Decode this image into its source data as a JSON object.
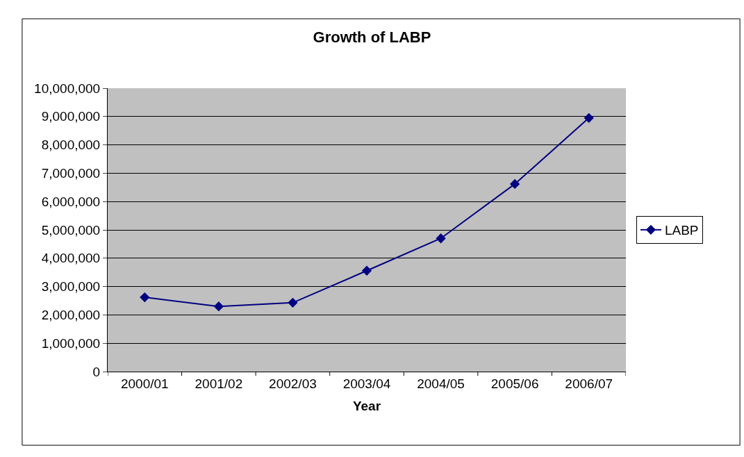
{
  "chart_data": {
    "type": "line",
    "title": "Growth of LABP",
    "xlabel": "Year",
    "categories": [
      "2000/01",
      "2001/02",
      "2002/03",
      "2003/04",
      "2004/05",
      "2005/06",
      "2006/07"
    ],
    "series": [
      {
        "name": "LABP",
        "color": "#000080",
        "values": [
          2620000,
          2300000,
          2430000,
          3560000,
          4700000,
          6620000,
          8950000
        ]
      }
    ],
    "ylim": [
      0,
      10000000
    ],
    "yticks": [
      {
        "value": 0,
        "label": "0"
      },
      {
        "value": 1000000,
        "label": "1,000,000"
      },
      {
        "value": 2000000,
        "label": "2,000,000"
      },
      {
        "value": 3000000,
        "label": "3,000,000"
      },
      {
        "value": 4000000,
        "label": "4,000,000"
      },
      {
        "value": 5000000,
        "label": "5,000,000"
      },
      {
        "value": 6000000,
        "label": "6,000,000"
      },
      {
        "value": 7000000,
        "label": "7,000,000"
      },
      {
        "value": 8000000,
        "label": "8,000,000"
      },
      {
        "value": 9000000,
        "label": "9,000,000"
      },
      {
        "value": 10000000,
        "label": "10,000,000"
      }
    ],
    "grid": "y",
    "legend": "right",
    "marker": "diamond",
    "line_style": "solid"
  }
}
